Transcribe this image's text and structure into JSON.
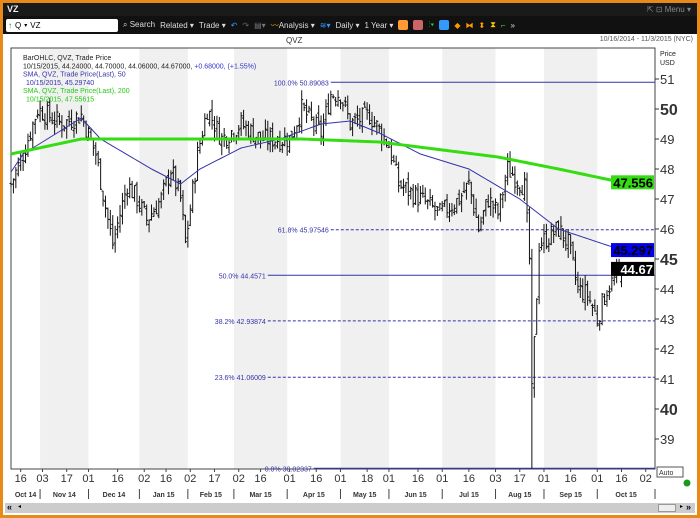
{
  "window": {
    "title": "VZ",
    "controls": "⇱ ⊡ Menu ▾"
  },
  "toolbar": {
    "symbol_type": "Q",
    "symbol": "VZ",
    "search": "Search",
    "related": "Related ▾",
    "trade": "Trade ▾",
    "analysis": "Analysis ▾",
    "period": "Daily ▾",
    "range": "1 Year ▾"
  },
  "chart": {
    "title": "QVZ",
    "range": "10/16/2014 - 11/3/2015 (NYC)",
    "axis_unit": "Price\nUSD",
    "auto": "Auto",
    "legend": {
      "l1": "BarOHLC, QVZ, Trade Price",
      "l2a": "10/15/2015, 44.24000, 44.70000, 44.06000, 44.67000, ",
      "l2b": "+0.68000, (+1.55%)",
      "l3": "SMA, QVZ, Trade Price(Last),  50",
      "l4": "10/15/2015, 45.29740",
      "l5": "SMA, QVZ, Trade Price(Last),  200",
      "l6": "10/15/2015, 47.55615"
    },
    "colors": {
      "bars": "#111111",
      "sma50": "#3333aa",
      "sma200": "#33dd11",
      "fib": "#3333aa",
      "frame": "#e88a1a"
    }
  },
  "chart_data": {
    "type": "ohlc",
    "title": "QVZ",
    "ylim": [
      37.7,
      51.6
    ],
    "yticks": [
      39,
      40,
      41,
      42,
      43,
      44,
      45,
      46,
      47,
      48,
      49,
      50,
      51
    ],
    "big_ticks": [
      40,
      45,
      50
    ],
    "ndays": 265,
    "xticks": [
      [
        "16",
        4
      ],
      [
        "03",
        13
      ],
      [
        "17",
        23
      ],
      [
        "01",
        32
      ],
      [
        "16",
        44
      ],
      [
        "02",
        55
      ],
      [
        "16",
        64
      ],
      [
        "02",
        74
      ],
      [
        "17",
        84
      ],
      [
        "02",
        94
      ],
      [
        "16",
        103
      ],
      [
        "01",
        115
      ],
      [
        "16",
        126
      ],
      [
        "01",
        136
      ],
      [
        "18",
        147
      ],
      [
        "01",
        156
      ],
      [
        "16",
        168
      ],
      [
        "01",
        178
      ],
      [
        "16",
        189
      ],
      [
        "03",
        200
      ],
      [
        "17",
        210
      ],
      [
        "01",
        220
      ],
      [
        "16",
        231
      ],
      [
        "01",
        242
      ],
      [
        "16",
        252
      ],
      [
        "02",
        262
      ]
    ],
    "months": [
      [
        "Oct 14",
        0
      ],
      [
        "Nov 14",
        12
      ],
      [
        "Dec 14",
        32
      ],
      [
        "Jan 15",
        53
      ],
      [
        "Feb 15",
        73
      ],
      [
        "Mar 15",
        92
      ],
      [
        "Apr 15",
        114
      ],
      [
        "May 15",
        136
      ],
      [
        "Jun 15",
        156
      ],
      [
        "Jul 15",
        178
      ],
      [
        "Aug 15",
        200
      ],
      [
        "Sep 15",
        220
      ],
      [
        "Oct 15",
        242
      ]
    ],
    "close_waypoints": [
      [
        0,
        47.5
      ],
      [
        5,
        48.5
      ],
      [
        11,
        50
      ],
      [
        21,
        49.5
      ],
      [
        29,
        49.8
      ],
      [
        35,
        48.5
      ],
      [
        40,
        46.3
      ],
      [
        42,
        45.5
      ],
      [
        48,
        47.5
      ],
      [
        52,
        47
      ],
      [
        56,
        46.3
      ],
      [
        62,
        47
      ],
      [
        66,
        48
      ],
      [
        70,
        47
      ],
      [
        72,
        45.5
      ],
      [
        77,
        48.5
      ],
      [
        81,
        50
      ],
      [
        87,
        49
      ],
      [
        95,
        49.5
      ],
      [
        103,
        49
      ],
      [
        109,
        49
      ],
      [
        115,
        49
      ],
      [
        120,
        50
      ],
      [
        128,
        49.2
      ],
      [
        132,
        50.5
      ],
      [
        136,
        50.5
      ],
      [
        140,
        49.5
      ],
      [
        148,
        49.8
      ],
      [
        156,
        48.8
      ],
      [
        160,
        47.5
      ],
      [
        169,
        47
      ],
      [
        177,
        46.5
      ],
      [
        185,
        47
      ],
      [
        189,
        47.5
      ],
      [
        193,
        46
      ],
      [
        197,
        47
      ],
      [
        201,
        46.5
      ],
      [
        205,
        48
      ],
      [
        212,
        47.4
      ],
      [
        214,
        45
      ],
      [
        215,
        40.5
      ],
      [
        218,
        45.5
      ],
      [
        226,
        46
      ],
      [
        230,
        45.5
      ],
      [
        234,
        44
      ],
      [
        238,
        43.8
      ],
      [
        242,
        43
      ],
      [
        246,
        44
      ],
      [
        252,
        44.67
      ]
    ],
    "sma50": [
      [
        0,
        47.9
      ],
      [
        5,
        48.5
      ],
      [
        29,
        49.7
      ],
      [
        37,
        49
      ],
      [
        58,
        48
      ],
      [
        70,
        47.5
      ],
      [
        78,
        48
      ],
      [
        95,
        48.7
      ],
      [
        111,
        49
      ],
      [
        128,
        49.5
      ],
      [
        140,
        49.6
      ],
      [
        152,
        49.2
      ],
      [
        169,
        48.5
      ],
      [
        189,
        48
      ],
      [
        210,
        47
      ],
      [
        226,
        46
      ],
      [
        252,
        45.3
      ]
    ],
    "sma200": [
      [
        0,
        48.5
      ],
      [
        29,
        49
      ],
      [
        120,
        49
      ],
      [
        152,
        48.9
      ],
      [
        201,
        48.4
      ],
      [
        226,
        48
      ],
      [
        252,
        47.556
      ]
    ],
    "fib": [
      {
        "label": "100.0%",
        "value": "50.89083",
        "v": 50.89083,
        "dash": false
      },
      {
        "label": "61.8%",
        "value": "45.97546",
        "v": 45.97546,
        "dash": true
      },
      {
        "label": "50.0%",
        "value": "44.4571",
        "v": 44.4571,
        "dash": false
      },
      {
        "label": "38.2%",
        "value": "42.93874",
        "v": 42.93874,
        "dash": true
      },
      {
        "label": "23.6%",
        "value": "41.06009",
        "v": 41.06009,
        "dash": true
      },
      {
        "label": "0.0%",
        "value": "38.02337",
        "v": 38.02337,
        "dash": false
      }
    ],
    "fib_start_day": [
      132,
      132,
      106,
      106,
      106,
      125
    ],
    "last_labels": [
      {
        "text": "47.556",
        "v": 47.556,
        "bg": "#33dd11",
        "fg": "#000"
      },
      {
        "text": "45.297",
        "v": 45.297,
        "bg": "#0000ee",
        "fg": "#000"
      },
      {
        "text": "44.67",
        "v": 44.67,
        "bg": "#000",
        "fg": "#fff"
      }
    ]
  }
}
